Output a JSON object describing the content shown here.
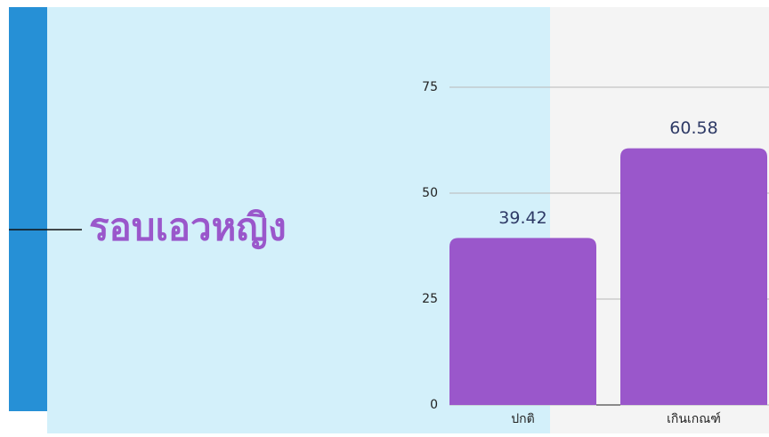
{
  "chart_data": {
    "type": "bar",
    "title": "รอบเอวหญิง",
    "categories": [
      "ปกติ",
      "เกินเกณฑ์"
    ],
    "values": [
      39.42,
      60.58
    ],
    "color": "#9a57cb",
    "ylim": [
      0,
      75
    ],
    "yticks": [
      0,
      25,
      50,
      75
    ],
    "grid": true
  }
}
